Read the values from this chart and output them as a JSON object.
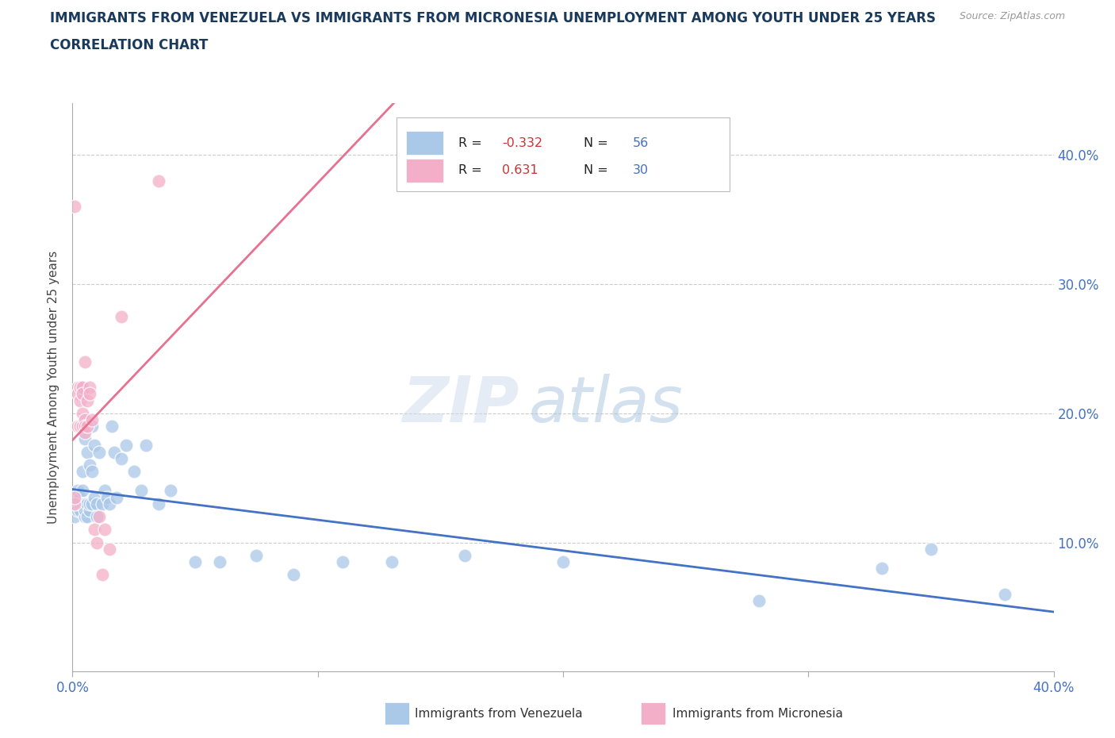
{
  "title_line1": "IMMIGRANTS FROM VENEZUELA VS IMMIGRANTS FROM MICRONESIA UNEMPLOYMENT AMONG YOUTH UNDER 25 YEARS",
  "title_line2": "CORRELATION CHART",
  "source": "Source: ZipAtlas.com",
  "ylabel": "Unemployment Among Youth under 25 years",
  "watermark_zip": "ZIP",
  "watermark_atlas": "atlas",
  "xlim": [
    0.0,
    0.4
  ],
  "ylim": [
    0.0,
    0.44
  ],
  "xtick_positions": [
    0.0,
    0.1,
    0.2,
    0.3,
    0.4
  ],
  "xtick_labels": [
    "0.0%",
    "",
    "",
    "",
    "40.0%"
  ],
  "yticks_right": [
    0.1,
    0.2,
    0.3,
    0.4
  ],
  "ytick_labels_right": [
    "10.0%",
    "20.0%",
    "30.0%",
    "40.0%"
  ],
  "grid_color": "#cccccc",
  "background_color": "#ffffff",
  "title_color": "#1a3a5c",
  "axis_label_color": "#4472c4",
  "scatter_blue": "#aac8e8",
  "scatter_pink": "#f4afc8",
  "line_blue": "#4472c4",
  "line_pink": "#e87090",
  "R_venezuela": -0.332,
  "N_venezuela": 56,
  "R_micronesia": 0.631,
  "N_micronesia": 30,
  "ven_x": [
    0.001,
    0.001,
    0.002,
    0.002,
    0.002,
    0.003,
    0.003,
    0.003,
    0.003,
    0.004,
    0.004,
    0.004,
    0.005,
    0.005,
    0.005,
    0.005,
    0.006,
    0.006,
    0.006,
    0.007,
    0.007,
    0.007,
    0.008,
    0.008,
    0.008,
    0.009,
    0.009,
    0.01,
    0.01,
    0.011,
    0.012,
    0.013,
    0.014,
    0.015,
    0.016,
    0.017,
    0.018,
    0.02,
    0.022,
    0.025,
    0.028,
    0.03,
    0.035,
    0.04,
    0.05,
    0.06,
    0.075,
    0.09,
    0.11,
    0.13,
    0.16,
    0.2,
    0.28,
    0.33,
    0.35,
    0.38
  ],
  "ven_y": [
    0.13,
    0.12,
    0.135,
    0.125,
    0.14,
    0.13,
    0.125,
    0.13,
    0.135,
    0.14,
    0.155,
    0.13,
    0.18,
    0.13,
    0.12,
    0.125,
    0.17,
    0.13,
    0.12,
    0.16,
    0.125,
    0.13,
    0.19,
    0.155,
    0.13,
    0.175,
    0.135,
    0.13,
    0.12,
    0.17,
    0.13,
    0.14,
    0.135,
    0.13,
    0.19,
    0.17,
    0.135,
    0.165,
    0.175,
    0.155,
    0.14,
    0.175,
    0.13,
    0.14,
    0.085,
    0.085,
    0.09,
    0.075,
    0.085,
    0.085,
    0.09,
    0.085,
    0.055,
    0.08,
    0.095,
    0.06
  ],
  "mic_x": [
    0.001,
    0.001,
    0.001,
    0.002,
    0.002,
    0.002,
    0.003,
    0.003,
    0.003,
    0.004,
    0.004,
    0.004,
    0.004,
    0.005,
    0.005,
    0.005,
    0.005,
    0.006,
    0.006,
    0.007,
    0.007,
    0.008,
    0.009,
    0.01,
    0.011,
    0.012,
    0.013,
    0.015,
    0.02,
    0.035
  ],
  "mic_y": [
    0.13,
    0.135,
    0.36,
    0.22,
    0.215,
    0.19,
    0.21,
    0.22,
    0.19,
    0.22,
    0.215,
    0.2,
    0.19,
    0.195,
    0.19,
    0.185,
    0.24,
    0.21,
    0.19,
    0.22,
    0.215,
    0.195,
    0.11,
    0.1,
    0.12,
    0.075,
    0.11,
    0.095,
    0.275,
    0.38
  ]
}
